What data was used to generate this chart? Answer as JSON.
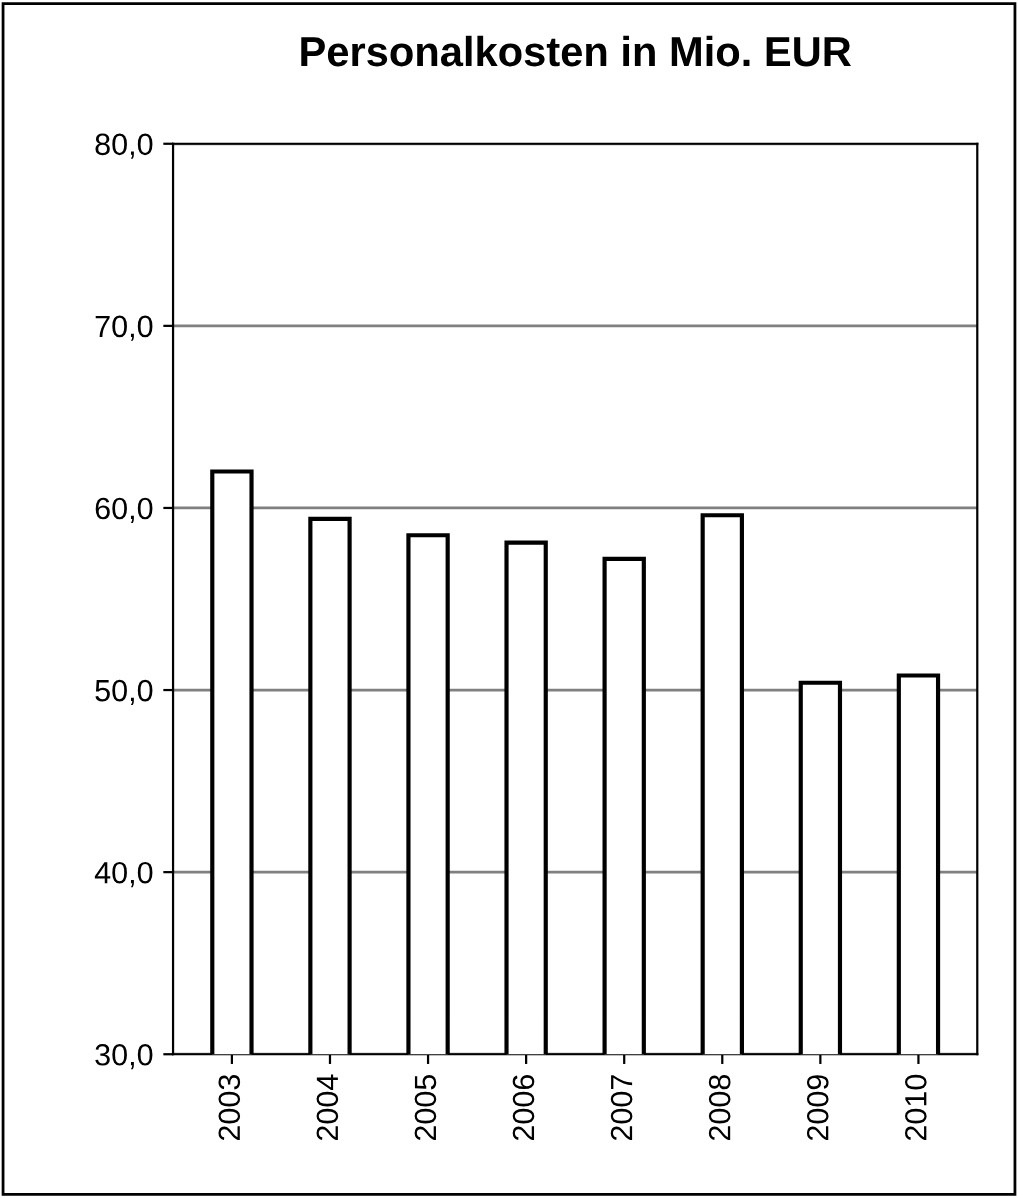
{
  "chart_data": {
    "type": "bar",
    "title": "Personalkosten in Mio. EUR",
    "categories": [
      "2003",
      "2004",
      "2005",
      "2006",
      "2007",
      "2008",
      "2009",
      "2010"
    ],
    "values": [
      62.0,
      59.4,
      58.5,
      58.1,
      57.2,
      59.6,
      50.4,
      50.8
    ],
    "color": "#ffffff",
    "ylim": [
      30,
      80
    ],
    "yticks": [
      {
        "value": 30,
        "label": "30,0"
      },
      {
        "value": 40,
        "label": "40,0"
      },
      {
        "value": 50,
        "label": "50,0"
      },
      {
        "value": 60,
        "label": "60,0"
      },
      {
        "value": 70,
        "label": "70,0"
      },
      {
        "value": 80,
        "label": "80,0"
      }
    ],
    "grid": "y"
  }
}
